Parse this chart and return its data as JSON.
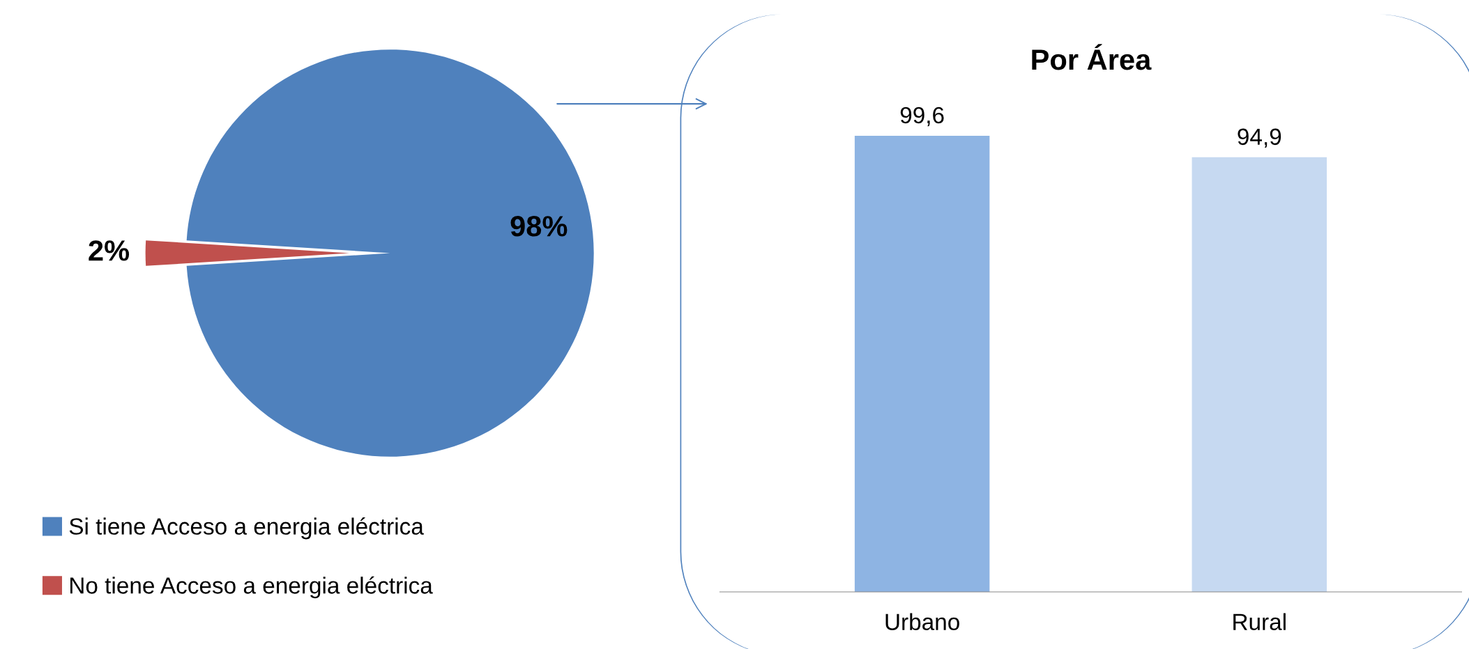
{
  "chart_data": [
    {
      "type": "pie",
      "categories": [
        "Si tiene Acceso a energia eléctrica",
        "No tiene Acceso a energia eléctrica"
      ],
      "values": [
        98,
        2
      ],
      "colors": [
        "#4f81bd",
        "#c0504d"
      ],
      "value_labels": [
        "98%",
        "2%"
      ],
      "legend": "bottom"
    },
    {
      "type": "bar",
      "title": "Por Área",
      "categories": [
        "Urbano",
        "Rural"
      ],
      "values": [
        99.6,
        94.9
      ],
      "colors": [
        "#8eb4e3",
        "#c6d9f1"
      ],
      "value_labels": [
        "99,6",
        "94,9"
      ]
    }
  ]
}
